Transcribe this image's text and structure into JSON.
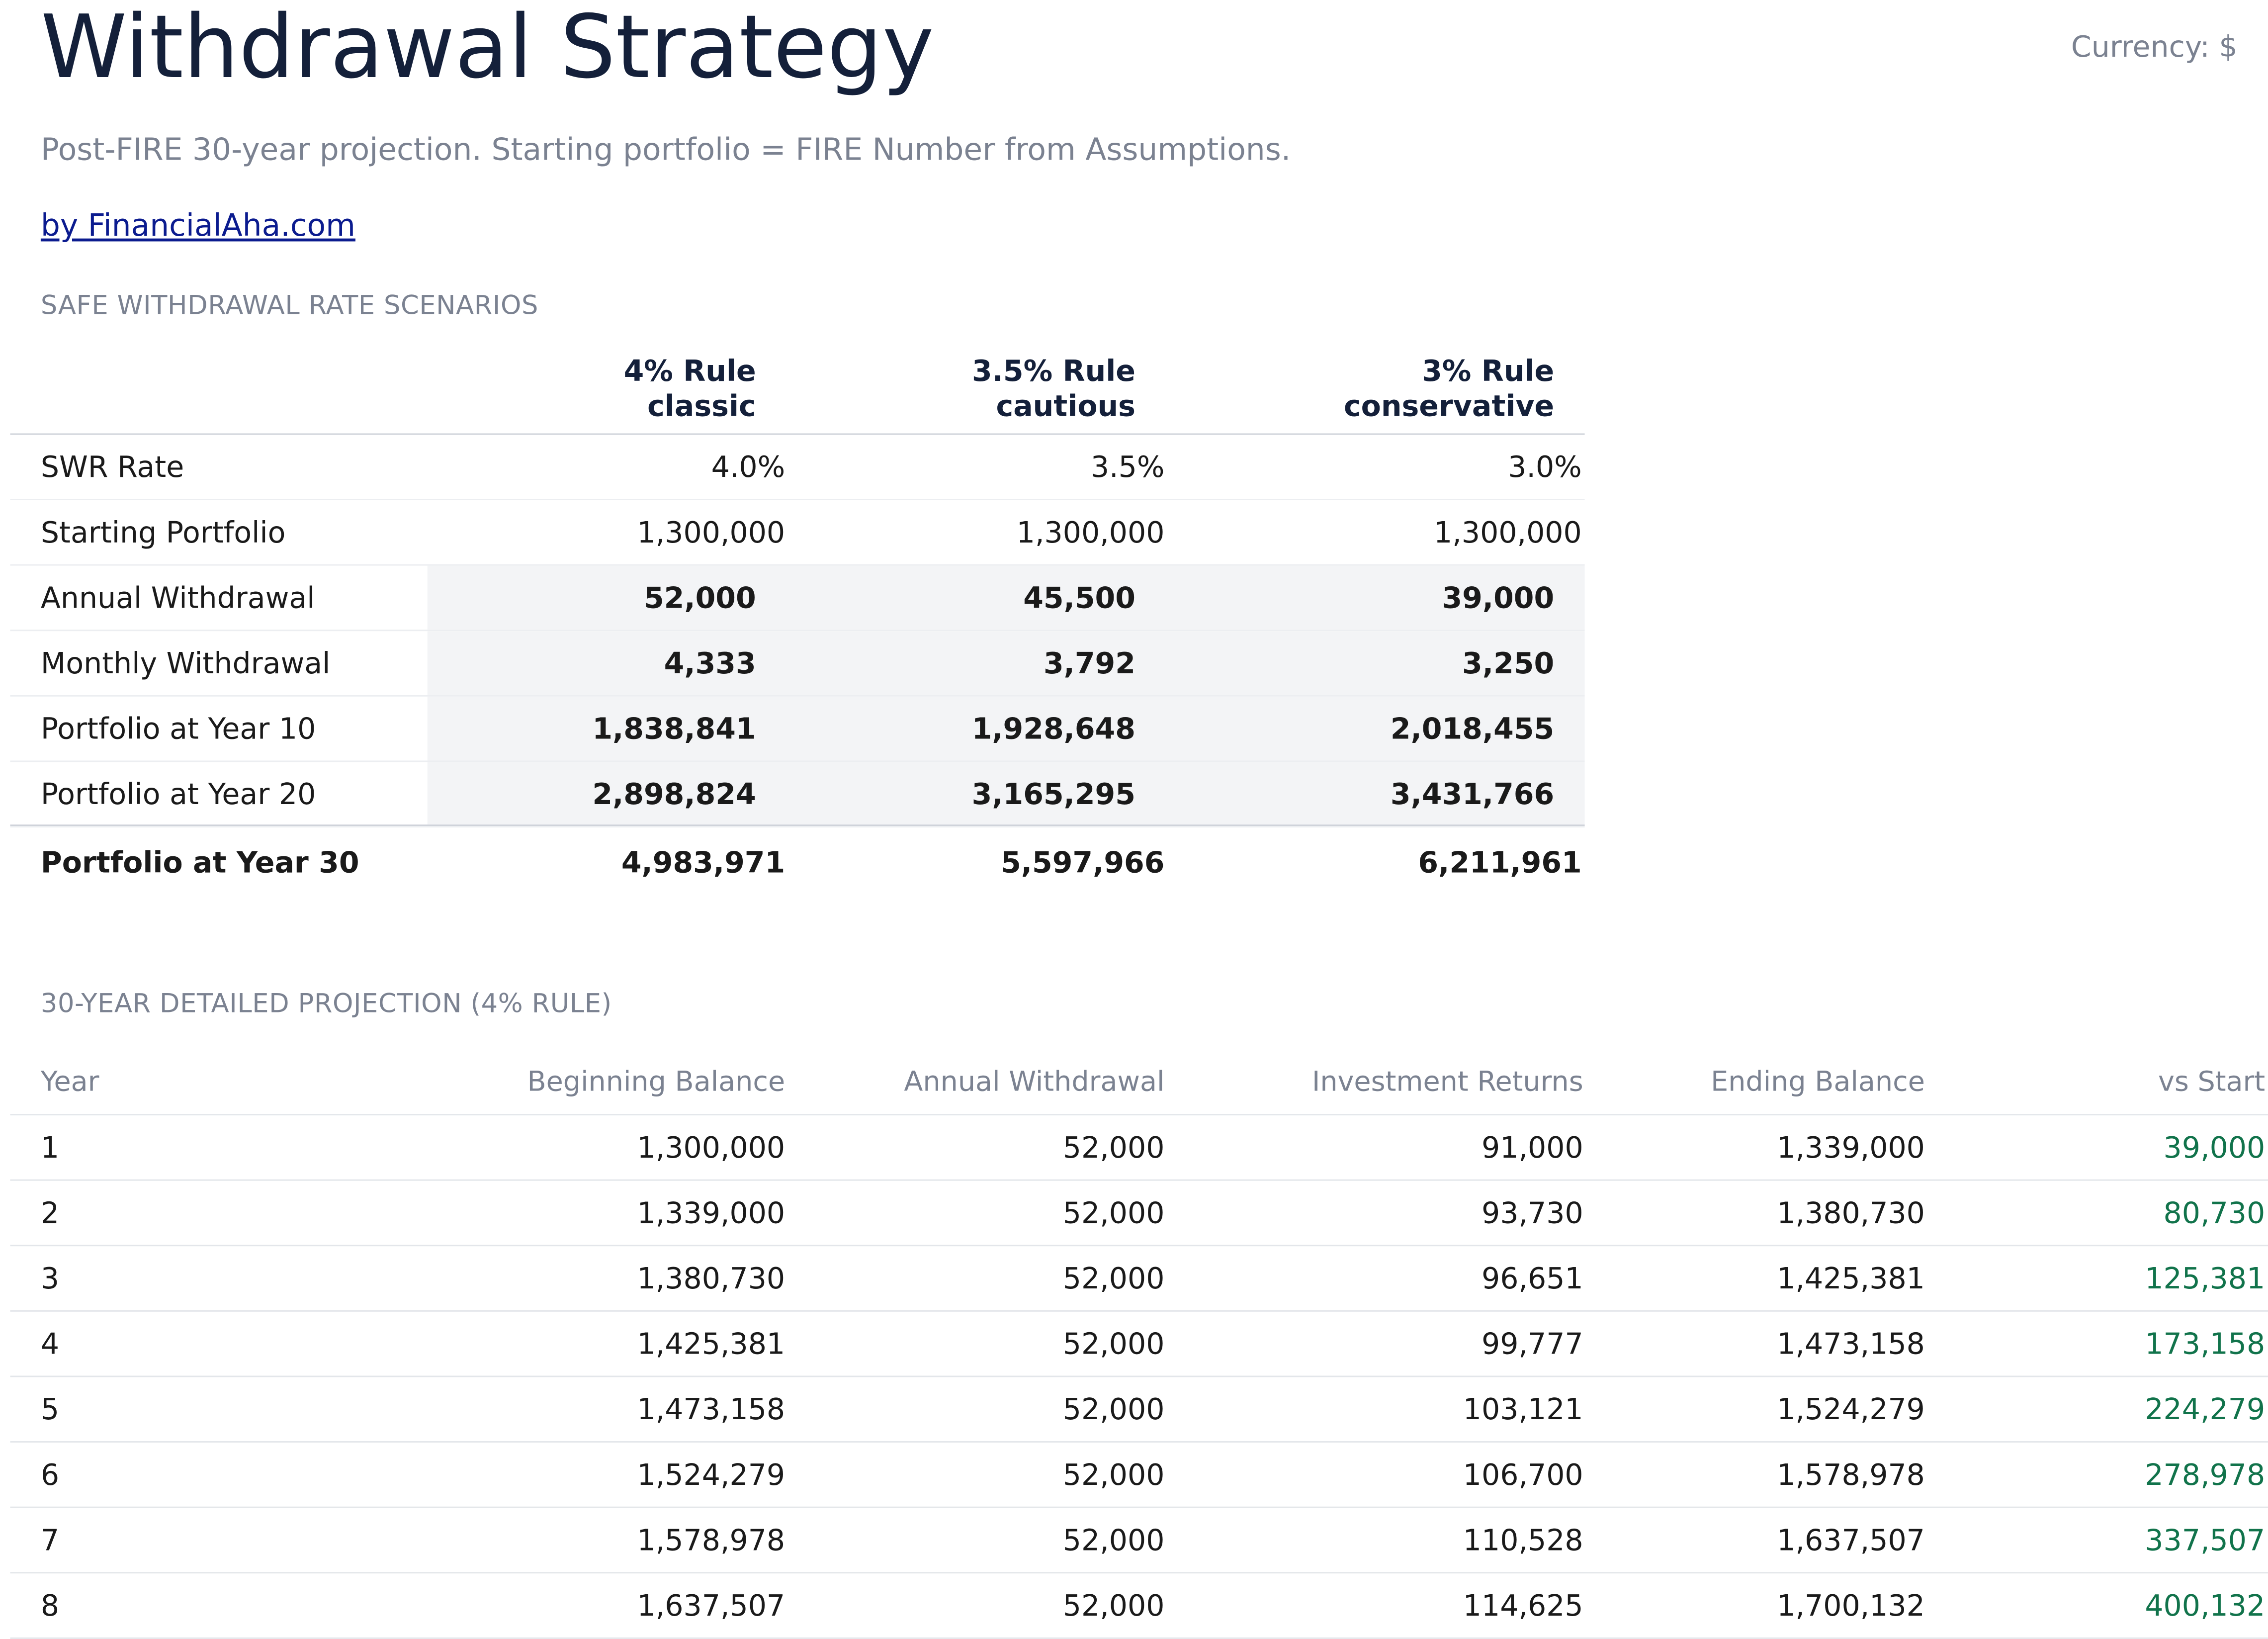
{
  "header": {
    "title": "Withdrawal Strategy",
    "currency": "Currency: $",
    "subtitle": "Post-FIRE 30-year projection. Starting portfolio = FIRE Number from Assumptions.",
    "link": "by FinancialAha.com"
  },
  "scenarios": {
    "section_label": "SAFE WITHDRAWAL RATE SCENARIOS",
    "columns": [
      {
        "name": "4% Rule",
        "sub": "classic"
      },
      {
        "name": "3.5% Rule",
        "sub": "cautious"
      },
      {
        "name": "3% Rule",
        "sub": "conservative"
      }
    ],
    "rows": [
      {
        "label": "SWR Rate",
        "values": [
          "4.0%",
          "3.5%",
          "3.0%"
        ]
      },
      {
        "label": "Starting Portfolio",
        "values": [
          "1,300,000",
          "1,300,000",
          "1,300,000"
        ]
      },
      {
        "label": "Annual Withdrawal",
        "values": [
          "52,000",
          "45,500",
          "39,000"
        ]
      },
      {
        "label": "Monthly Withdrawal",
        "values": [
          "4,333",
          "3,792",
          "3,250"
        ]
      },
      {
        "label": "Portfolio at Year 10",
        "values": [
          "1,838,841",
          "1,928,648",
          "2,018,455"
        ]
      },
      {
        "label": "Portfolio at Year 20",
        "values": [
          "2,898,824",
          "3,165,295",
          "3,431,766"
        ]
      }
    ],
    "total_row": {
      "label": "Portfolio at Year 30",
      "values": [
        "4,983,971",
        "5,597,966",
        "6,211,961"
      ]
    }
  },
  "projection": {
    "section_label": "30-YEAR DETAILED PROJECTION (4% RULE)",
    "headers": [
      "Year",
      "Beginning Balance",
      "Annual Withdrawal",
      "Investment Returns",
      "Ending Balance",
      "vs Start"
    ],
    "rows": [
      [
        "1",
        "1,300,000",
        "52,000",
        "91,000",
        "1,339,000",
        "39,000"
      ],
      [
        "2",
        "1,339,000",
        "52,000",
        "93,730",
        "1,380,730",
        "80,730"
      ],
      [
        "3",
        "1,380,730",
        "52,000",
        "96,651",
        "1,425,381",
        "125,381"
      ],
      [
        "4",
        "1,425,381",
        "52,000",
        "99,777",
        "1,473,158",
        "173,158"
      ],
      [
        "5",
        "1,473,158",
        "52,000",
        "103,121",
        "1,524,279",
        "224,279"
      ],
      [
        "6",
        "1,524,279",
        "52,000",
        "106,700",
        "1,578,978",
        "278,978"
      ],
      [
        "7",
        "1,578,978",
        "52,000",
        "110,528",
        "1,637,507",
        "337,507"
      ],
      [
        "8",
        "1,637,507",
        "52,000",
        "114,625",
        "1,700,132",
        "400,132"
      ]
    ]
  },
  "colors": {
    "title": "#14203a",
    "muted": "#7b8291",
    "link": "#0b1b8f",
    "positive": "#11734b",
    "shade": "#f3f4f6"
  }
}
